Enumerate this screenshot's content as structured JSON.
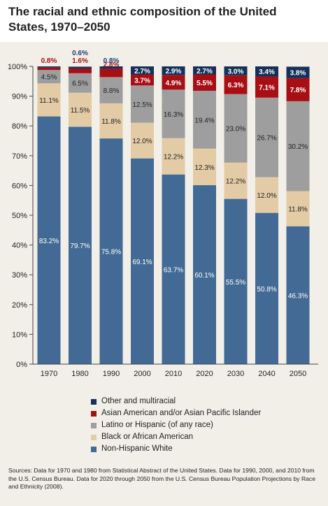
{
  "title": "The racial and ethnic composition of the United States, 1970–2050",
  "source": "Sources: Data for 1970 and 1980 from Statistical Abstract of the United States. Data for 1990, 2000, and 2010 from the U.S. Census Bureau. Data for 2020 through 2050 from the U.S. Census Bureau Population Projections by Race and Ethnicity (2008).",
  "chart_data": {
    "type": "bar",
    "stacked": true,
    "categories": [
      "1970",
      "1980",
      "1990",
      "2000",
      "2010",
      "2020",
      "2030",
      "2040",
      "2050"
    ],
    "ylim": [
      0,
      100
    ],
    "yticks": [
      "0%",
      "10%",
      "20%",
      "30%",
      "40%",
      "50%",
      "60%",
      "70%",
      "80%",
      "90%",
      "100%"
    ],
    "legend_position": "bottom",
    "series": [
      {
        "name": "Non-Hispanic White",
        "color": "#426a94",
        "values": [
          83.2,
          79.7,
          75.8,
          69.1,
          63.7,
          60.1,
          55.5,
          50.8,
          46.3
        ],
        "labels": [
          "83.2%",
          "79.7%",
          "75.8%",
          "69.1%",
          "63.7%",
          "60.1%",
          "55.5%",
          "50.8%",
          "46.3%"
        ]
      },
      {
        "name": "Black or African American",
        "color": "#e3cba5",
        "values": [
          11.1,
          11.5,
          11.8,
          12.0,
          12.2,
          12.3,
          12.2,
          12.0,
          11.8
        ],
        "labels": [
          "11.1%",
          "11.5%",
          "11.8%",
          "12.0%",
          "12.2%",
          "12.3%",
          "12.2%",
          "12.0%",
          "11.8%"
        ]
      },
      {
        "name": "Latino or Hispanic (of any race)",
        "color": "#9e9e9e",
        "values": [
          4.5,
          6.5,
          8.8,
          12.5,
          16.3,
          19.4,
          23.0,
          26.7,
          30.2
        ],
        "labels": [
          "4.5%",
          "6.5%",
          "8.8%",
          "12.5%",
          "16.3%",
          "19.4%",
          "23.0%",
          "26.7%",
          "30.2%"
        ]
      },
      {
        "name": "Asian American and/or Asian Pacific Islander",
        "color": "#a80f15",
        "values": [
          0.8,
          1.6,
          2.8,
          3.7,
          4.9,
          5.5,
          6.3,
          7.1,
          7.8
        ],
        "labels": [
          "0.8%",
          "1.6%",
          "2.8%",
          "3.7%",
          "4.9%",
          "5.5%",
          "6.3%",
          "7.1%",
          "7.8%"
        ]
      },
      {
        "name": "Other and multiracial",
        "color": "#15305a",
        "values": [
          0.4,
          0.6,
          0.8,
          2.7,
          2.9,
          2.7,
          3.0,
          3.4,
          3.8
        ],
        "labels": [
          "",
          "0.6%",
          "0.8%",
          "2.7%",
          "2.9%",
          "2.7%",
          "3.0%",
          "3.4%",
          "3.8%"
        ]
      }
    ]
  }
}
